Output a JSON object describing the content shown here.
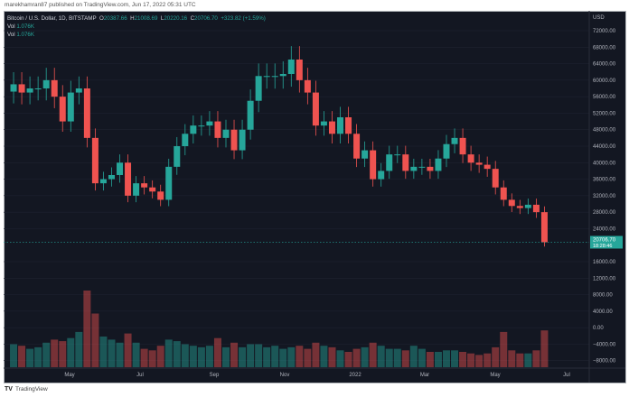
{
  "publisher": "marekhamran87 published on TradingView.com, Jun 17, 2022 05:31 UTC",
  "legend": {
    "symbol": "Bitcoin / U.S. Dollar, 1D, BITSTAMP",
    "o_label": "O",
    "o": "20387.66",
    "h_label": "H",
    "h": "21008.69",
    "l_label": "L",
    "l": "20220.16",
    "c_label": "C",
    "c": "20706.70",
    "change": "+323.82 (+1.59%)",
    "vol_label": "Vol",
    "vol": "1.076K",
    "vol2_label": "Vol",
    "vol2": "1.076K"
  },
  "footer": {
    "brand": "TradingView"
  },
  "colors": {
    "up": "#26a69a",
    "down": "#ef5350",
    "background": "#131722",
    "price_label": "#26a69a"
  },
  "chart_data": {
    "type": "candlestick",
    "currency": "USD",
    "y_ticks": [
      "72000.00",
      "68000.00",
      "64000.00",
      "60000.00",
      "56000.00",
      "52000.00",
      "48000.00",
      "44000.00",
      "40000.00",
      "36000.00",
      "32000.00",
      "28000.00",
      "24000.00",
      "16000.00",
      "12000.00",
      "8000.00",
      "4000.00",
      "0.00",
      "−4000.00",
      "−8000.00"
    ],
    "x_ticks": [
      "May",
      "Jul",
      "Sep",
      "Nov",
      "2022",
      "Mar",
      "May",
      "Jul"
    ],
    "last_price": "20706.70",
    "countdown": "18:28:46",
    "weeks": [
      "2021-03-14",
      "2021-03-21",
      "2021-03-28",
      "2021-04-04",
      "2021-04-11",
      "2021-04-18",
      "2021-04-25",
      "2021-05-02",
      "2021-05-09",
      "2021-05-16",
      "2021-05-23",
      "2021-05-30",
      "2021-06-06",
      "2021-06-13",
      "2021-06-20",
      "2021-06-27",
      "2021-07-04",
      "2021-07-11",
      "2021-07-18",
      "2021-07-25",
      "2021-08-01",
      "2021-08-08",
      "2021-08-15",
      "2021-08-22",
      "2021-08-29",
      "2021-09-05",
      "2021-09-12",
      "2021-09-19",
      "2021-09-26",
      "2021-10-03",
      "2021-10-10",
      "2021-10-17",
      "2021-10-24",
      "2021-10-31",
      "2021-11-07",
      "2021-11-14",
      "2021-11-21",
      "2021-11-28",
      "2021-12-05",
      "2021-12-12",
      "2021-12-19",
      "2021-12-26",
      "2022-01-02",
      "2022-01-09",
      "2022-01-16",
      "2022-01-23",
      "2022-01-30",
      "2022-02-06",
      "2022-02-13",
      "2022-02-20",
      "2022-02-27",
      "2022-03-06",
      "2022-03-13",
      "2022-03-20",
      "2022-03-27",
      "2022-04-03",
      "2022-04-10",
      "2022-04-17",
      "2022-04-24",
      "2022-05-01",
      "2022-05-08",
      "2022-05-15",
      "2022-05-22",
      "2022-05-29",
      "2022-06-05",
      "2022-06-12"
    ],
    "close": [
      59000,
      57000,
      58000,
      58000,
      60000,
      56000,
      50000,
      57000,
      58000,
      46000,
      35000,
      36000,
      37000,
      40000,
      32000,
      35000,
      34000,
      33000,
      31000,
      39000,
      44000,
      47000,
      49000,
      49000,
      50000,
      46000,
      48000,
      43000,
      48000,
      55000,
      61000,
      61000,
      61000,
      61500,
      65000,
      60000,
      57000,
      49000,
      50000,
      47000,
      51000,
      47000,
      41000,
      43000,
      36000,
      38000,
      42000,
      42000,
      38000,
      39000,
      39000,
      38000,
      41000,
      44500,
      46000,
      42000,
      40000,
      39500,
      38500,
      34000,
      31000,
      29500,
      29000,
      29800,
      28000,
      20706.7
    ],
    "volume": [
      1.5,
      1.4,
      1.2,
      1.3,
      1.6,
      1.8,
      1.7,
      1.9,
      2.3,
      5.0,
      3.5,
      2.0,
      1.8,
      1.6,
      2.2,
      1.6,
      1.2,
      1.1,
      1.4,
      1.8,
      1.7,
      1.5,
      1.4,
      1.3,
      1.4,
      1.9,
      1.3,
      1.6,
      1.3,
      1.5,
      1.5,
      1.3,
      1.4,
      1.2,
      1.3,
      1.4,
      1.2,
      1.6,
      1.4,
      1.3,
      1.1,
      1.0,
      1.2,
      1.3,
      1.6,
      1.4,
      1.2,
      1.2,
      1.1,
      1.4,
      1.2,
      1.0,
      1.0,
      1.1,
      1.1,
      1.0,
      0.9,
      0.8,
      0.9,
      1.3,
      2.3,
      1.1,
      0.9,
      0.9,
      1.1,
      2.4
    ]
  }
}
